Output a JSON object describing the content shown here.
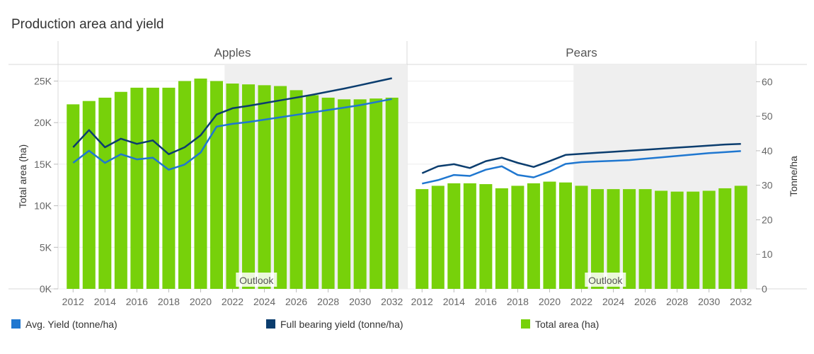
{
  "chart_data": {
    "type": "bar",
    "title": "Production area and yield",
    "ylabel": "Total area (ha)",
    "y2label": "Tonne/ha",
    "ylim": [
      0,
      27000
    ],
    "y2lim": [
      0,
      65
    ],
    "y_ticks": [
      "0K",
      "5K",
      "10K",
      "15K",
      "20K",
      "25K"
    ],
    "y2_ticks": [
      "0",
      "10",
      "20",
      "30",
      "40",
      "50",
      "60"
    ],
    "x_ticks": [
      "2012",
      "2014",
      "2016",
      "2018",
      "2020",
      "2022",
      "2024",
      "2026",
      "2028",
      "2030",
      "2032"
    ],
    "years": [
      2012,
      2013,
      2014,
      2015,
      2016,
      2017,
      2018,
      2019,
      2020,
      2021,
      2022,
      2023,
      2024,
      2025,
      2026,
      2027,
      2028,
      2029,
      2030,
      2031,
      2032
    ],
    "outlook_label": "Outlook",
    "outlook_start": 2022,
    "legend": [
      {
        "name": "Avg. Yield (tonne/ha)",
        "color": "#1f77d0"
      },
      {
        "name": "Full bearing yield (tonne/ha)",
        "color": "#0b3d6e"
      },
      {
        "name": "Total area (ha)",
        "color": "#77d10a"
      }
    ],
    "panels": [
      {
        "name": "Apples",
        "total_area": [
          22200,
          22600,
          23000,
          23700,
          24200,
          24200,
          24200,
          25000,
          25300,
          25000,
          24700,
          24600,
          24500,
          24400,
          23900,
          23300,
          23000,
          22800,
          22800,
          22900,
          23000
        ],
        "avg_yield": [
          36.5,
          40,
          36.5,
          39,
          37.5,
          38,
          34.5,
          36,
          39.5,
          47,
          47.8,
          48.3,
          49,
          49.7,
          50.4,
          51.1,
          51.8,
          52.5,
          53.2,
          54.1,
          55
        ],
        "full_bearing_yield": [
          41,
          46,
          41,
          43.5,
          42,
          43,
          39,
          41,
          44.5,
          50.5,
          52.3,
          53,
          53.8,
          54.6,
          55.4,
          56.2,
          57.1,
          58,
          59,
          60,
          61
        ]
      },
      {
        "name": "Pears",
        "total_area": [
          12000,
          12400,
          12700,
          12700,
          12600,
          12100,
          12400,
          12700,
          12900,
          12800,
          12400,
          12000,
          12000,
          12000,
          12000,
          11800,
          11700,
          11700,
          11800,
          12100,
          12400
        ],
        "avg_yield": [
          30.5,
          31.5,
          33,
          32.7,
          34.5,
          35.5,
          33,
          32.3,
          34,
          36.2,
          36.7,
          36.9,
          37.1,
          37.3,
          37.7,
          38.1,
          38.5,
          38.9,
          39.3,
          39.6,
          39.9
        ],
        "full_bearing_yield": [
          33.5,
          35.5,
          36.1,
          35,
          37,
          38,
          36.5,
          35.3,
          37,
          38.8,
          39.1,
          39.4,
          39.7,
          40,
          40.3,
          40.6,
          40.9,
          41.2,
          41.5,
          41.8,
          42
        ]
      }
    ]
  }
}
